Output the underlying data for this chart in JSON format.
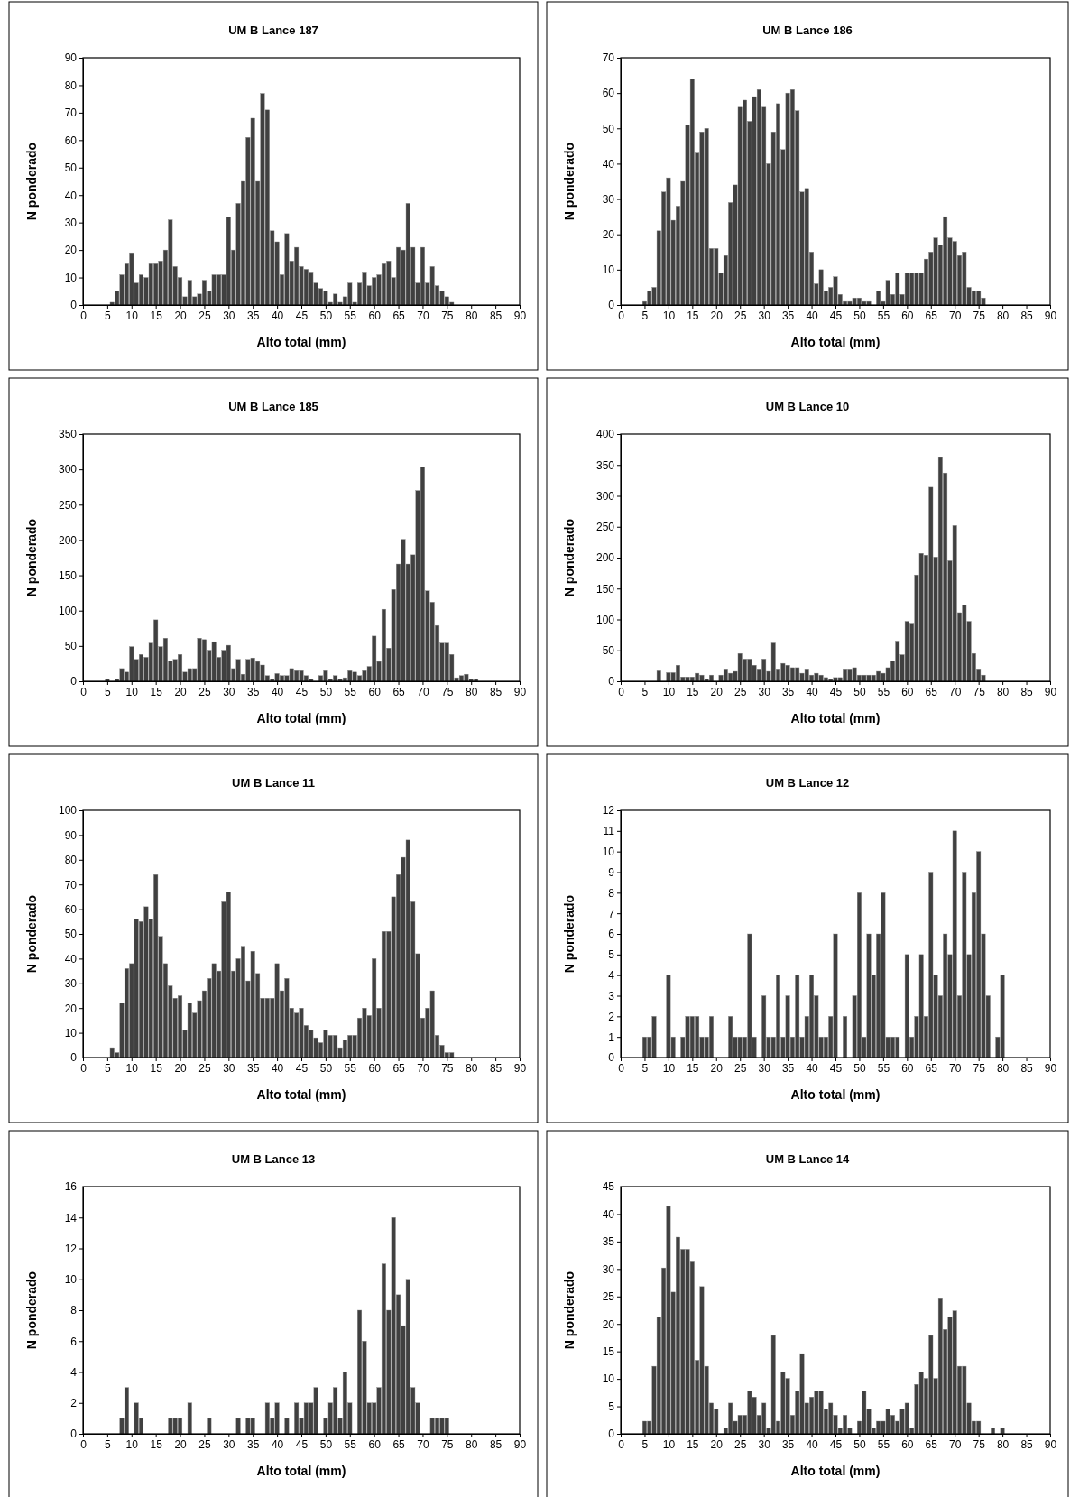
{
  "chart_data": [
    {
      "type": "bar",
      "title": "UM B Lance 187",
      "xlabel": "Alto total (mm)",
      "ylabel": "N ponderado",
      "color": "#404040",
      "xlim": [
        0,
        90
      ],
      "xticks": [
        0,
        5,
        10,
        15,
        20,
        25,
        30,
        35,
        40,
        45,
        50,
        55,
        60,
        65,
        70,
        75,
        80,
        85,
        90
      ],
      "ylim": [
        0,
        90
      ],
      "yticks": [
        0,
        10,
        20,
        30,
        40,
        50,
        60,
        70,
        80,
        90
      ],
      "x": [
        6,
        7,
        8,
        9,
        10,
        11,
        12,
        13,
        14,
        15,
        16,
        17,
        18,
        19,
        20,
        21,
        22,
        23,
        24,
        25,
        26,
        27,
        28,
        29,
        30,
        31,
        32,
        33,
        34,
        35,
        36,
        37,
        38,
        39,
        40,
        41,
        42,
        43,
        44,
        45,
        46,
        47,
        48,
        49,
        50,
        51,
        52,
        53,
        54,
        55,
        56,
        57,
        58,
        59,
        60,
        61,
        62,
        63,
        64,
        65,
        66,
        67,
        68,
        69,
        70,
        71,
        72,
        73,
        74,
        75,
        76
      ],
      "values": [
        1,
        5,
        11,
        15,
        19,
        8,
        11,
        10,
        15,
        15,
        16,
        20,
        31,
        14,
        10,
        3,
        9,
        3,
        4,
        9,
        5,
        11,
        11,
        11,
        32,
        20,
        37,
        45,
        61,
        68,
        45,
        77,
        71,
        27,
        23,
        11,
        26,
        16,
        21,
        14,
        13,
        12,
        8,
        6,
        5,
        1,
        4,
        1,
        3,
        8,
        1,
        8,
        12,
        7,
        10,
        11,
        15,
        16,
        10,
        21,
        20,
        37,
        21,
        8,
        21,
        8,
        14,
        7,
        5,
        3,
        1
      ]
    },
    {
      "type": "bar",
      "title": "UM B Lance 186",
      "xlabel": "Alto total (mm)",
      "ylabel": "N ponderado",
      "color": "#404040",
      "xlim": [
        0,
        90
      ],
      "xticks": [
        0,
        5,
        10,
        15,
        20,
        25,
        30,
        35,
        40,
        45,
        50,
        55,
        60,
        65,
        70,
        75,
        80,
        85,
        90
      ],
      "ylim": [
        0,
        70
      ],
      "yticks": [
        0,
        10,
        20,
        30,
        40,
        50,
        60,
        70
      ],
      "x": [
        5,
        6,
        7,
        8,
        9,
        10,
        11,
        12,
        13,
        14,
        15,
        16,
        17,
        18,
        19,
        20,
        21,
        22,
        23,
        24,
        25,
        26,
        27,
        28,
        29,
        30,
        31,
        32,
        33,
        34,
        35,
        36,
        37,
        38,
        39,
        40,
        41,
        42,
        43,
        44,
        45,
        46,
        47,
        48,
        49,
        50,
        51,
        52,
        53,
        54,
        55,
        56,
        57,
        58,
        59,
        60,
        61,
        62,
        63,
        64,
        65,
        66,
        67,
        68,
        69,
        70,
        71,
        72,
        73,
        74,
        75,
        76
      ],
      "values": [
        1,
        4,
        5,
        21,
        32,
        36,
        24,
        28,
        35,
        51,
        64,
        43,
        49,
        50,
        16,
        16,
        9,
        14,
        29,
        34,
        56,
        58,
        52,
        59,
        61,
        56,
        40,
        49,
        57,
        44,
        60,
        61,
        55,
        32,
        33,
        15,
        6,
        10,
        4,
        5,
        8,
        3,
        1,
        1,
        2,
        2,
        1,
        1,
        0,
        4,
        1,
        7,
        3,
        9,
        3,
        9,
        9,
        9,
        9,
        13,
        15,
        19,
        17,
        25,
        19,
        18,
        14,
        15,
        5,
        4,
        4,
        2
      ]
    },
    {
      "type": "bar",
      "title": "UM B Lance 185",
      "xlabel": "Alto total (mm)",
      "ylabel": "N ponderado",
      "color": "#404040",
      "xlim": [
        0,
        90
      ],
      "xticks": [
        0,
        5,
        10,
        15,
        20,
        25,
        30,
        35,
        40,
        45,
        50,
        55,
        60,
        65,
        70,
        75,
        80,
        85,
        90
      ],
      "ylim": [
        0,
        350
      ],
      "yticks": [
        0,
        50,
        100,
        150,
        200,
        250,
        300,
        350
      ],
      "x": [
        5,
        6,
        7,
        8,
        9,
        10,
        11,
        12,
        13,
        14,
        15,
        16,
        17,
        18,
        19,
        20,
        21,
        22,
        23,
        24,
        25,
        26,
        27,
        28,
        29,
        30,
        31,
        32,
        33,
        34,
        35,
        36,
        37,
        38,
        39,
        40,
        41,
        42,
        43,
        44,
        45,
        46,
        47,
        48,
        49,
        50,
        51,
        52,
        53,
        54,
        55,
        56,
        57,
        58,
        59,
        60,
        61,
        62,
        63,
        64,
        65,
        66,
        67,
        68,
        69,
        70,
        71,
        72,
        73,
        74,
        75,
        76,
        77,
        78,
        79,
        80,
        81
      ],
      "values": [
        3,
        0,
        3,
        18,
        13,
        49,
        31,
        38,
        34,
        54,
        87,
        49,
        61,
        29,
        31,
        38,
        13,
        18,
        18,
        61,
        59,
        44,
        56,
        34,
        44,
        51,
        18,
        31,
        10,
        31,
        33,
        28,
        23,
        8,
        3,
        11,
        8,
        8,
        18,
        15,
        15,
        8,
        3,
        0,
        8,
        15,
        3,
        8,
        3,
        5,
        15,
        13,
        8,
        15,
        21,
        64,
        28,
        102,
        47,
        130,
        166,
        201,
        166,
        179,
        270,
        303,
        128,
        112,
        79,
        54,
        54,
        38,
        5,
        8,
        10,
        3,
        3
      ]
    },
    {
      "type": "bar",
      "title": "UM B Lance 10",
      "xlabel": "Alto total (mm)",
      "ylabel": "N ponderado",
      "color": "#404040",
      "xlim": [
        0,
        90
      ],
      "xticks": [
        0,
        5,
        10,
        15,
        20,
        25,
        30,
        35,
        40,
        45,
        50,
        55,
        60,
        65,
        70,
        75,
        80,
        85,
        90
      ],
      "ylim": [
        0,
        400
      ],
      "yticks": [
        0,
        50,
        100,
        150,
        200,
        250,
        300,
        350,
        400
      ],
      "x": [
        8,
        9,
        10,
        11,
        12,
        13,
        14,
        15,
        16,
        17,
        18,
        19,
        20,
        21,
        22,
        23,
        24,
        25,
        26,
        27,
        28,
        29,
        30,
        31,
        32,
        33,
        34,
        35,
        36,
        37,
        38,
        39,
        40,
        41,
        42,
        43,
        44,
        45,
        46,
        47,
        48,
        49,
        50,
        51,
        52,
        53,
        54,
        55,
        56,
        57,
        58,
        59,
        60,
        61,
        62,
        63,
        64,
        65,
        66,
        67,
        68,
        69,
        70,
        71,
        72,
        73,
        74,
        75,
        76
      ],
      "values": [
        17,
        0,
        14,
        14,
        26,
        7,
        7,
        7,
        13,
        10,
        4,
        10,
        0,
        10,
        20,
        13,
        16,
        45,
        36,
        36,
        26,
        20,
        36,
        16,
        62,
        20,
        29,
        26,
        22,
        22,
        13,
        20,
        10,
        13,
        10,
        6,
        3,
        6,
        6,
        20,
        20,
        22,
        10,
        10,
        10,
        10,
        16,
        13,
        22,
        33,
        65,
        43,
        97,
        94,
        172,
        207,
        204,
        314,
        201,
        362,
        337,
        195,
        252,
        111,
        123,
        97,
        45,
        20,
        10
      ]
    },
    {
      "type": "bar",
      "title": "UM B Lance 11",
      "xlabel": "Alto total (mm)",
      "ylabel": "N ponderado",
      "color": "#404040",
      "xlim": [
        0,
        90
      ],
      "xticks": [
        0,
        5,
        10,
        15,
        20,
        25,
        30,
        35,
        40,
        45,
        50,
        55,
        60,
        65,
        70,
        75,
        80,
        85,
        90
      ],
      "ylim": [
        0,
        100
      ],
      "yticks": [
        0,
        10,
        20,
        30,
        40,
        50,
        60,
        70,
        80,
        90,
        100
      ],
      "x": [
        6,
        7,
        8,
        9,
        10,
        11,
        12,
        13,
        14,
        15,
        16,
        17,
        18,
        19,
        20,
        21,
        22,
        23,
        24,
        25,
        26,
        27,
        28,
        29,
        30,
        31,
        32,
        33,
        34,
        35,
        36,
        37,
        38,
        39,
        40,
        41,
        42,
        43,
        44,
        45,
        46,
        47,
        48,
        49,
        50,
        51,
        52,
        53,
        54,
        55,
        56,
        57,
        58,
        59,
        60,
        61,
        62,
        63,
        64,
        65,
        66,
        67,
        68,
        69,
        70,
        71,
        72,
        73,
        74,
        75,
        76
      ],
      "values": [
        4,
        2,
        22,
        36,
        38,
        56,
        55,
        61,
        56,
        74,
        49,
        38,
        29,
        24,
        25,
        11,
        22,
        18,
        23,
        27,
        32,
        38,
        35,
        63,
        67,
        35,
        40,
        45,
        31,
        43,
        34,
        24,
        24,
        24,
        38,
        27,
        32,
        20,
        18,
        20,
        13,
        11,
        8,
        6,
        11,
        9,
        9,
        4,
        7,
        9,
        9,
        16,
        20,
        17,
        40,
        20,
        51,
        51,
        65,
        74,
        81,
        88,
        63,
        42,
        16,
        20,
        27,
        9,
        5,
        2,
        2
      ]
    },
    {
      "type": "bar",
      "title": "UM B Lance 12",
      "xlabel": "Alto total (mm)",
      "ylabel": "N ponderado",
      "color": "#404040",
      "xlim": [
        0,
        90
      ],
      "xticks": [
        0,
        5,
        10,
        15,
        20,
        25,
        30,
        35,
        40,
        45,
        50,
        55,
        60,
        65,
        70,
        75,
        80,
        85,
        90
      ],
      "ylim": [
        0,
        12
      ],
      "yticks": [
        0,
        1,
        2,
        3,
        4,
        5,
        6,
        7,
        8,
        9,
        10,
        11,
        12
      ],
      "x": [
        5,
        6,
        7,
        8,
        9,
        10,
        11,
        12,
        13,
        14,
        15,
        16,
        17,
        18,
        19,
        20,
        21,
        22,
        23,
        24,
        25,
        26,
        27,
        28,
        29,
        30,
        31,
        32,
        33,
        34,
        35,
        36,
        37,
        38,
        39,
        40,
        41,
        42,
        43,
        44,
        45,
        46,
        47,
        48,
        49,
        50,
        51,
        52,
        53,
        54,
        55,
        56,
        57,
        58,
        59,
        60,
        61,
        62,
        63,
        64,
        65,
        66,
        67,
        68,
        69,
        70,
        71,
        72,
        73,
        74,
        75,
        76,
        77,
        78,
        79,
        80
      ],
      "values": [
        1,
        1,
        2,
        0,
        0,
        4,
        1,
        0,
        1,
        2,
        2,
        2,
        1,
        1,
        2,
        0,
        0,
        0,
        2,
        1,
        1,
        1,
        6,
        1,
        0,
        3,
        1,
        1,
        4,
        1,
        3,
        1,
        4,
        1,
        2,
        4,
        3,
        1,
        1,
        2,
        6,
        0,
        2,
        0,
        3,
        8,
        1,
        6,
        4,
        6,
        8,
        1,
        1,
        1,
        0,
        5,
        1,
        2,
        5,
        2,
        9,
        4,
        3,
        6,
        5,
        11,
        3,
        9,
        5,
        8,
        10,
        6,
        3,
        0,
        1,
        4
      ]
    },
    {
      "type": "bar",
      "title": "UM B Lance 13",
      "xlabel": "Alto total (mm)",
      "ylabel": "N ponderado",
      "color": "#404040",
      "xlim": [
        0,
        90
      ],
      "xticks": [
        0,
        5,
        10,
        15,
        20,
        25,
        30,
        35,
        40,
        45,
        50,
        55,
        60,
        65,
        70,
        75,
        80,
        85,
        90
      ],
      "ylim": [
        0,
        16
      ],
      "yticks": [
        0,
        2,
        4,
        6,
        8,
        10,
        12,
        14,
        16
      ],
      "x": [
        8,
        9,
        10,
        11,
        12,
        13,
        14,
        15,
        16,
        17,
        18,
        19,
        20,
        21,
        22,
        23,
        24,
        25,
        26,
        27,
        28,
        29,
        30,
        31,
        32,
        33,
        34,
        35,
        36,
        37,
        38,
        39,
        40,
        41,
        42,
        43,
        44,
        45,
        46,
        47,
        48,
        49,
        50,
        51,
        52,
        53,
        54,
        55,
        56,
        57,
        58,
        59,
        60,
        61,
        62,
        63,
        64,
        65,
        66,
        67,
        68,
        69,
        70,
        71,
        72,
        73,
        74,
        75
      ],
      "values": [
        1,
        3,
        0,
        2,
        1,
        0,
        0,
        0,
        0,
        0,
        1,
        1,
        1,
        0,
        2,
        0,
        0,
        0,
        1,
        0,
        0,
        0,
        0,
        0,
        1,
        0,
        1,
        1,
        0,
        0,
        2,
        1,
        2,
        0,
        1,
        0,
        2,
        1,
        2,
        2,
        3,
        0,
        1,
        2,
        3,
        1,
        4,
        2,
        0,
        8,
        6,
        2,
        2,
        3,
        11,
        8,
        14,
        9,
        7,
        10,
        3,
        2,
        0,
        0,
        1,
        1,
        1,
        1
      ]
    },
    {
      "type": "bar",
      "title": "UM B Lance 14",
      "xlabel": "Alto total (mm)",
      "ylabel": "N ponderado",
      "color": "#404040",
      "xlim": [
        0,
        90
      ],
      "xticks": [
        0,
        5,
        10,
        15,
        20,
        25,
        30,
        35,
        40,
        45,
        50,
        55,
        60,
        65,
        70,
        75,
        80,
        85,
        90
      ],
      "ylim": [
        0,
        45
      ],
      "yticks": [
        0,
        5,
        10,
        15,
        20,
        25,
        30,
        35,
        40,
        45
      ],
      "x": [
        5,
        6,
        7,
        8,
        9,
        10,
        11,
        12,
        13,
        14,
        15,
        16,
        17,
        18,
        19,
        20,
        21,
        22,
        23,
        24,
        25,
        26,
        27,
        28,
        29,
        30,
        31,
        32,
        33,
        34,
        35,
        36,
        37,
        38,
        39,
        40,
        41,
        42,
        43,
        44,
        45,
        46,
        47,
        48,
        49,
        50,
        51,
        52,
        53,
        54,
        55,
        56,
        57,
        58,
        59,
        60,
        61,
        62,
        63,
        64,
        65,
        66,
        67,
        68,
        69,
        70,
        71,
        72,
        73,
        74,
        75,
        76,
        77,
        78,
        79,
        80
      ],
      "values": [
        2.3,
        2.3,
        12.3,
        21.3,
        30.2,
        41.4,
        25.8,
        35.8,
        33.6,
        33.6,
        31.3,
        13.4,
        26.8,
        12.3,
        5.6,
        4.5,
        0,
        1.1,
        5.6,
        2.3,
        3.4,
        3.4,
        7.8,
        6.7,
        3.4,
        5.6,
        1.1,
        17.9,
        2.3,
        11.2,
        10.1,
        3.4,
        7.8,
        14.6,
        5.6,
        6.7,
        7.8,
        7.8,
        4.5,
        5.6,
        3.4,
        1.1,
        3.4,
        1.1,
        0,
        2.3,
        7.8,
        4.5,
        1.1,
        2.3,
        2.3,
        4.5,
        3.4,
        2.3,
        4.5,
        5.6,
        1.1,
        9,
        11.2,
        10.1,
        17.9,
        10.1,
        24.6,
        19,
        21.3,
        22.4,
        12.3,
        12.3,
        5.6,
        2.3,
        2.3,
        0,
        0,
        1.1,
        0,
        1.1
      ]
    }
  ]
}
